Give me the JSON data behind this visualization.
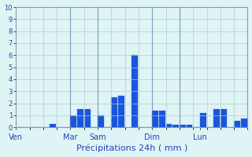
{
  "title": "Précipitations 24h ( mm )",
  "ylabel_values": [
    0,
    1,
    2,
    3,
    4,
    5,
    6,
    7,
    8,
    9,
    10
  ],
  "ylim": [
    0,
    10
  ],
  "background_color": "#dff4f4",
  "bar_color": "#1a55dd",
  "grid_color": "#b0cccc",
  "day_labels": [
    "Ven",
    "Mar",
    "Sam",
    "Dim",
    "Lun"
  ],
  "day_positions": [
    0,
    8,
    12,
    20,
    27
  ],
  "num_bars": 34,
  "bar_values": [
    0,
    0,
    0,
    0,
    0,
    0.3,
    0,
    0,
    1.0,
    1.5,
    1.5,
    0,
    1.0,
    0,
    2.5,
    2.6,
    0,
    6.0,
    0,
    0,
    1.4,
    1.4,
    0.3,
    0.2,
    0.2,
    0.2,
    0,
    1.2,
    0,
    1.5,
    1.5,
    0,
    0.5,
    0.7
  ],
  "vline_positions": [
    0,
    8,
    12,
    20,
    24,
    34
  ],
  "vline_color": "#5577aa",
  "tick_label_color": "#2244bb",
  "xlabel_color": "#2244bb",
  "spine_color": "#8899aa"
}
